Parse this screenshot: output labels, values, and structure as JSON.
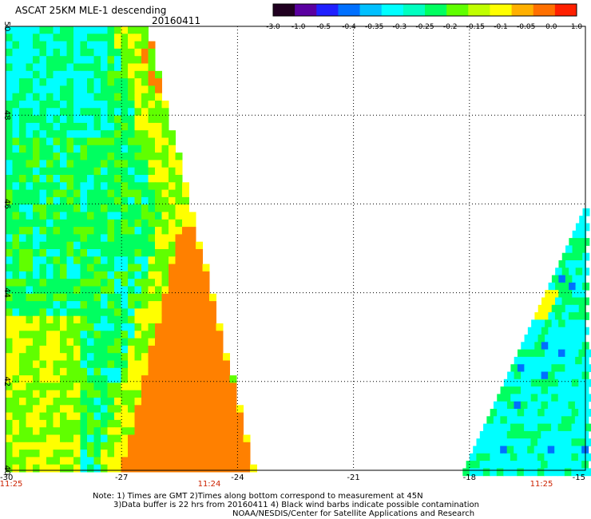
{
  "title": "ASCAT 25KM MLE-1 descending",
  "date": "20160411",
  "colorbar": {
    "tick_labels": [
      "-3.0",
      "-1.0",
      "-0.5",
      "-0.4",
      "-0.35",
      "-0.3",
      "-0.25",
      "-0.2",
      "-0.15",
      "-0.1",
      "-0.05",
      "0.0",
      "1.0"
    ],
    "colors": [
      "#200020",
      "#5a00a0",
      "#2020ff",
      "#0070ff",
      "#00c0ff",
      "#00ffff",
      "#00ffc0",
      "#00ff60",
      "#60ff00",
      "#c0ff00",
      "#ffff00",
      "#ffb000",
      "#ff7000",
      "#ff2000"
    ]
  },
  "map": {
    "lon_range": [
      -30,
      -15
    ],
    "lat_range": [
      40,
      50
    ],
    "x_ticks": [
      "-30",
      "-27",
      "-24",
      "-21",
      "-18",
      "-15"
    ],
    "y_ticks": [
      "50",
      "48",
      "46",
      "44",
      "42",
      "40"
    ],
    "grid": "dotted",
    "swath_colors": {
      "cyan": "#00ffff",
      "green": "#00ff60",
      "ltgreen": "#60ff00",
      "yellow": "#ffff00",
      "orange": "#ff8000",
      "blue": "#0070ff"
    }
  },
  "times": {
    "left": "11:25",
    "middle": "11:24",
    "right": "11:25",
    "color": "#cc2200"
  },
  "notes": {
    "line1": "Note: 1) Times are GMT 2)Times along bottom correspond to measurement at 45N",
    "line2": "3)Data buffer is 22 hrs from 20160411 4) Black wind barbs indicate possible contamination",
    "line3": "NOAA/NESDIS/Center for Satellite Applications and Research"
  }
}
